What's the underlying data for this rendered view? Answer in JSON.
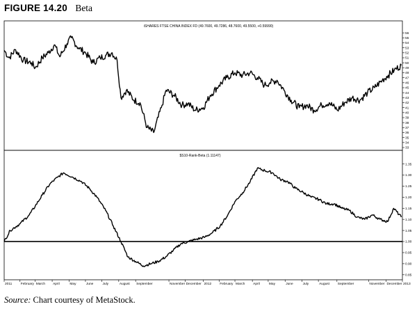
{
  "figure": {
    "label": "FIGURE 14.20",
    "name": "Beta",
    "source_label": "Source:",
    "source_text": "Chart courtesy of MetaStock."
  },
  "chart_data": [
    {
      "type": "line",
      "panel": "price",
      "title": "iSHARES FTSE CHINA INDEX FD (49.7600, 49.7286, 48.7600, 49.5500, +0.59990)",
      "ylim": [
        33,
        57
      ],
      "yticks": [
        33,
        34,
        35,
        36,
        37,
        38,
        39,
        40,
        41,
        42,
        43,
        44,
        45,
        46,
        47,
        48,
        49,
        50,
        51,
        52,
        53,
        54,
        55,
        56
      ],
      "grid": false,
      "x_start": "2011-01-03",
      "x_end": "2013-01-02",
      "series": [
        {
          "values": [
            {
              "x": "2011-01-03",
              "y": 52.5
            },
            {
              "x": "2011-01-12",
              "y": 51.0
            },
            {
              "x": "2011-01-24",
              "y": 52.6
            },
            {
              "x": "2011-02-07",
              "y": 50.5
            },
            {
              "x": "2011-02-22",
              "y": 50.0
            },
            {
              "x": "2011-03-01",
              "y": 49.0
            },
            {
              "x": "2011-03-14",
              "y": 51.0
            },
            {
              "x": "2011-03-25",
              "y": 52.0
            },
            {
              "x": "2011-04-05",
              "y": 53.6
            },
            {
              "x": "2011-04-15",
              "y": 51.2
            },
            {
              "x": "2011-04-28",
              "y": 53.8
            },
            {
              "x": "2011-05-06",
              "y": 55.0
            },
            {
              "x": "2011-05-19",
              "y": 53.0
            },
            {
              "x": "2011-06-01",
              "y": 52.0
            },
            {
              "x": "2011-06-15",
              "y": 50.0
            },
            {
              "x": "2011-06-28",
              "y": 51.0
            },
            {
              "x": "2011-07-08",
              "y": 51.5
            },
            {
              "x": "2011-07-20",
              "y": 52.0
            },
            {
              "x": "2011-07-29",
              "y": 50.5
            },
            {
              "x": "2011-08-05",
              "y": 43.0
            },
            {
              "x": "2011-08-15",
              "y": 44.5
            },
            {
              "x": "2011-08-29",
              "y": 42.5
            },
            {
              "x": "2011-09-09",
              "y": 42.0
            },
            {
              "x": "2011-09-22",
              "y": 37.0
            },
            {
              "x": "2011-10-04",
              "y": 36.0
            },
            {
              "x": "2011-10-18",
              "y": 41.0
            },
            {
              "x": "2011-10-27",
              "y": 44.5
            },
            {
              "x": "2011-11-10",
              "y": 43.5
            },
            {
              "x": "2011-11-25",
              "y": 41.5
            },
            {
              "x": "2011-12-06",
              "y": 41.8
            },
            {
              "x": "2011-12-19",
              "y": 40.5
            },
            {
              "x": "2012-01-03",
              "y": 41.0
            },
            {
              "x": "2012-01-16",
              "y": 43.5
            },
            {
              "x": "2012-02-01",
              "y": 45.5
            },
            {
              "x": "2012-02-15",
              "y": 47.0
            },
            {
              "x": "2012-03-01",
              "y": 48.0
            },
            {
              "x": "2012-03-15",
              "y": 47.5
            },
            {
              "x": "2012-03-29",
              "y": 48.0
            },
            {
              "x": "2012-04-11",
              "y": 47.0
            },
            {
              "x": "2012-04-24",
              "y": 45.5
            },
            {
              "x": "2012-05-04",
              "y": 46.0
            },
            {
              "x": "2012-05-17",
              "y": 46.5
            },
            {
              "x": "2012-05-30",
              "y": 44.5
            },
            {
              "x": "2012-06-12",
              "y": 42.5
            },
            {
              "x": "2012-06-27",
              "y": 41.0
            },
            {
              "x": "2012-07-10",
              "y": 41.5
            },
            {
              "x": "2012-07-24",
              "y": 40.5
            },
            {
              "x": "2012-08-07",
              "y": 41.5
            },
            {
              "x": "2012-08-21",
              "y": 42.0
            },
            {
              "x": "2012-09-05",
              "y": 40.5
            },
            {
              "x": "2012-09-18",
              "y": 42.0
            },
            {
              "x": "2012-10-02",
              "y": 43.0
            },
            {
              "x": "2012-10-16",
              "y": 42.5
            },
            {
              "x": "2012-10-30",
              "y": 44.0
            },
            {
              "x": "2012-11-12",
              "y": 45.0
            },
            {
              "x": "2012-11-26",
              "y": 46.5
            },
            {
              "x": "2012-12-07",
              "y": 47.5
            },
            {
              "x": "2012-12-18",
              "y": 48.5
            },
            {
              "x": "2012-12-31",
              "y": 49.5
            }
          ]
        }
      ]
    },
    {
      "type": "line",
      "panel": "indicator",
      "title": "$S10-Rank-Beta (1.11147)",
      "ylim": [
        0.84,
        1.38
      ],
      "yticks": [
        0.85,
        0.9,
        0.95,
        1.0,
        1.05,
        1.1,
        1.15,
        1.2,
        1.25,
        1.3,
        1.35
      ],
      "reference_line": 1.0,
      "grid": false,
      "x_start": "2011-01-03",
      "x_end": "2013-01-02",
      "xtick_labels": [
        {
          "date": "2011-01-03",
          "label": "2011"
        },
        {
          "date": "2011-02-01",
          "label": "February"
        },
        {
          "date": "2011-03-01",
          "label": "March"
        },
        {
          "date": "2011-04-01",
          "label": "April"
        },
        {
          "date": "2011-05-02",
          "label": "May"
        },
        {
          "date": "2011-06-01",
          "label": "June"
        },
        {
          "date": "2011-07-01",
          "label": "July"
        },
        {
          "date": "2011-08-01",
          "label": "August"
        },
        {
          "date": "2011-09-01",
          "label": "September"
        },
        {
          "date": "2011-11-01",
          "label": "November"
        },
        {
          "date": "2011-12-01",
          "label": "December"
        },
        {
          "date": "2012-01-03",
          "label": "2012"
        },
        {
          "date": "2012-02-01",
          "label": "February"
        },
        {
          "date": "2012-03-01",
          "label": "March"
        },
        {
          "date": "2012-04-02",
          "label": "April"
        },
        {
          "date": "2012-05-01",
          "label": "May"
        },
        {
          "date": "2012-06-01",
          "label": "June"
        },
        {
          "date": "2012-07-02",
          "label": "July"
        },
        {
          "date": "2012-08-01",
          "label": "August"
        },
        {
          "date": "2012-09-04",
          "label": "September"
        },
        {
          "date": "2012-11-01",
          "label": "November"
        },
        {
          "date": "2012-12-03",
          "label": "December"
        },
        {
          "date": "2013-01-02",
          "label": "2013"
        }
      ],
      "series": [
        {
          "values": [
            {
              "x": "2011-01-03",
              "y": 1.0
            },
            {
              "x": "2011-01-14",
              "y": 1.05
            },
            {
              "x": "2011-02-01",
              "y": 1.08
            },
            {
              "x": "2011-02-18",
              "y": 1.12
            },
            {
              "x": "2011-03-01",
              "y": 1.16
            },
            {
              "x": "2011-03-14",
              "y": 1.21
            },
            {
              "x": "2011-03-28",
              "y": 1.26
            },
            {
              "x": "2011-04-11",
              "y": 1.29
            },
            {
              "x": "2011-04-22",
              "y": 1.31
            },
            {
              "x": "2011-05-09",
              "y": 1.29
            },
            {
              "x": "2011-05-25",
              "y": 1.27
            },
            {
              "x": "2011-06-08",
              "y": 1.24
            },
            {
              "x": "2011-06-22",
              "y": 1.2
            },
            {
              "x": "2011-07-08",
              "y": 1.14
            },
            {
              "x": "2011-07-22",
              "y": 1.07
            },
            {
              "x": "2011-08-05",
              "y": 1.0
            },
            {
              "x": "2011-08-18",
              "y": 0.93
            },
            {
              "x": "2011-09-01",
              "y": 0.91
            },
            {
              "x": "2011-09-15",
              "y": 0.89
            },
            {
              "x": "2011-09-29",
              "y": 0.9
            },
            {
              "x": "2011-10-12",
              "y": 0.91
            },
            {
              "x": "2011-10-26",
              "y": 0.93
            },
            {
              "x": "2011-11-09",
              "y": 0.96
            },
            {
              "x": "2011-11-23",
              "y": 0.99
            },
            {
              "x": "2011-12-07",
              "y": 1.0
            },
            {
              "x": "2011-12-21",
              "y": 1.01
            },
            {
              "x": "2012-01-06",
              "y": 1.02
            },
            {
              "x": "2012-01-20",
              "y": 1.04
            },
            {
              "x": "2012-02-03",
              "y": 1.07
            },
            {
              "x": "2012-02-17",
              "y": 1.12
            },
            {
              "x": "2012-03-01",
              "y": 1.18
            },
            {
              "x": "2012-03-15",
              "y": 1.22
            },
            {
              "x": "2012-03-29",
              "y": 1.27
            },
            {
              "x": "2012-04-11",
              "y": 1.33
            },
            {
              "x": "2012-04-25",
              "y": 1.32
            },
            {
              "x": "2012-05-09",
              "y": 1.31
            },
            {
              "x": "2012-05-23",
              "y": 1.28
            },
            {
              "x": "2012-06-06",
              "y": 1.27
            },
            {
              "x": "2012-06-20",
              "y": 1.24
            },
            {
              "x": "2012-07-05",
              "y": 1.22
            },
            {
              "x": "2012-07-19",
              "y": 1.2
            },
            {
              "x": "2012-08-02",
              "y": 1.19
            },
            {
              "x": "2012-08-16",
              "y": 1.17
            },
            {
              "x": "2012-08-30",
              "y": 1.17
            },
            {
              "x": "2012-09-13",
              "y": 1.15
            },
            {
              "x": "2012-09-27",
              "y": 1.14
            },
            {
              "x": "2012-10-11",
              "y": 1.11
            },
            {
              "x": "2012-10-25",
              "y": 1.1
            },
            {
              "x": "2012-11-08",
              "y": 1.12
            },
            {
              "x": "2012-11-22",
              "y": 1.1
            },
            {
              "x": "2012-12-06",
              "y": 1.09
            },
            {
              "x": "2012-12-17",
              "y": 1.15
            },
            {
              "x": "2012-12-31",
              "y": 1.11
            }
          ]
        }
      ]
    }
  ]
}
